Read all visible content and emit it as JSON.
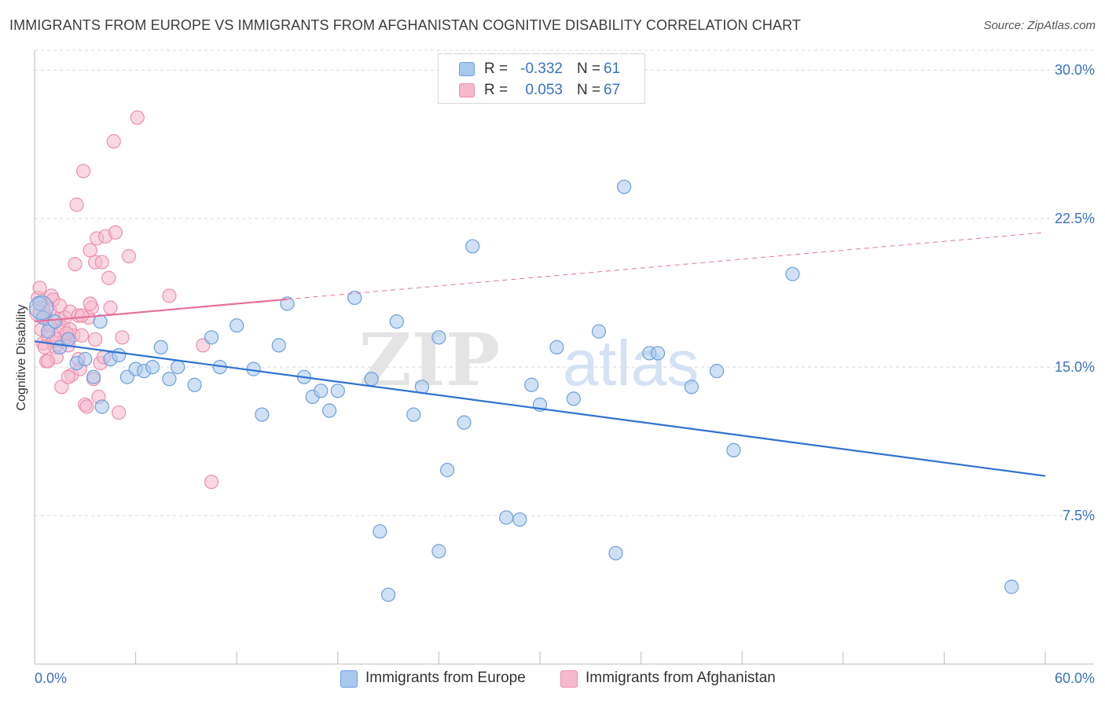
{
  "title": "IMMIGRANTS FROM EUROPE VS IMMIGRANTS FROM AFGHANISTAN COGNITIVE DISABILITY CORRELATION CHART",
  "source": "Source: ZipAtlas.com",
  "watermark": {
    "bold": "ZIP",
    "light": "atlas"
  },
  "colors": {
    "europe_fill": "#a9c8ee",
    "europe_stroke": "#6e9fdc",
    "europe_line": "#2f72d2",
    "afghan_fill": "#f6b8cc",
    "afghan_stroke": "#ec8fae",
    "afghan_line": "#e8709a",
    "axis_text": "#3a72c4",
    "grid": "#d9d9d9"
  },
  "stats": [
    {
      "r_label": "R =",
      "r": "-0.332",
      "n_label": "N =",
      "n": "61"
    },
    {
      "r_label": "R =",
      "r": "0.053",
      "n_label": "N =",
      "n": "67"
    }
  ],
  "chart_data": {
    "type": "scatter",
    "title": "IMMIGRANTS FROM EUROPE VS IMMIGRANTS FROM AFGHANISTAN COGNITIVE DISABILITY CORRELATION CHART",
    "xlabel": "",
    "ylabel": "Cognitive Disability",
    "xlim": [
      0,
      60
    ],
    "ylim": [
      0,
      31
    ],
    "x_tick_labels": [
      "0.0%",
      "60.0%"
    ],
    "y_ticks": [
      7.5,
      15.0,
      22.5,
      30.0
    ],
    "y_tick_labels": [
      "7.5%",
      "15.0%",
      "22.5%",
      "30.0%"
    ],
    "grid": true,
    "legend_position": "bottom-center",
    "series": [
      {
        "name": "Immigrants from Europe",
        "points": [
          [
            0.3,
            18.2
          ],
          [
            0.5,
            17.5
          ],
          [
            0.8,
            16.8
          ],
          [
            1.2,
            17.3
          ],
          [
            1.5,
            16.0
          ],
          [
            2.0,
            16.4
          ],
          [
            2.5,
            15.2
          ],
          [
            3.0,
            15.4
          ],
          [
            3.5,
            14.5
          ],
          [
            3.9,
            17.3
          ],
          [
            4.5,
            15.4
          ],
          [
            5.0,
            15.6
          ],
          [
            5.5,
            14.5
          ],
          [
            6.0,
            14.9
          ],
          [
            6.5,
            14.8
          ],
          [
            7.0,
            15.0
          ],
          [
            7.5,
            16.0
          ],
          [
            8.0,
            14.4
          ],
          [
            8.5,
            15.0
          ],
          [
            9.5,
            14.1
          ],
          [
            10.5,
            16.5
          ],
          [
            11.0,
            15.0
          ],
          [
            12.0,
            17.1
          ],
          [
            13.0,
            14.9
          ],
          [
            13.5,
            12.6
          ],
          [
            14.5,
            16.1
          ],
          [
            15.0,
            18.2
          ],
          [
            16.0,
            14.5
          ],
          [
            16.5,
            13.5
          ],
          [
            17.0,
            13.8
          ],
          [
            17.5,
            12.8
          ],
          [
            18.0,
            13.8
          ],
          [
            19.0,
            18.5
          ],
          [
            20.0,
            14.4
          ],
          [
            20.5,
            6.7
          ],
          [
            21.0,
            3.5
          ],
          [
            21.5,
            17.3
          ],
          [
            22.5,
            12.6
          ],
          [
            23.0,
            14.0
          ],
          [
            24.0,
            16.5
          ],
          [
            24.0,
            5.7
          ],
          [
            24.5,
            9.8
          ],
          [
            25.5,
            12.2
          ],
          [
            26.0,
            21.1
          ],
          [
            28.0,
            7.4
          ],
          [
            28.8,
            7.3
          ],
          [
            29.5,
            14.1
          ],
          [
            30.0,
            13.1
          ],
          [
            31.0,
            16.0
          ],
          [
            32.0,
            13.4
          ],
          [
            33.5,
            16.8
          ],
          [
            34.5,
            5.6
          ],
          [
            35.0,
            24.1
          ],
          [
            36.5,
            15.7
          ],
          [
            37.0,
            15.7
          ],
          [
            39.0,
            14.0
          ],
          [
            40.5,
            14.8
          ],
          [
            41.5,
            10.8
          ],
          [
            45.0,
            19.7
          ],
          [
            58.0,
            3.9
          ],
          [
            4.0,
            13.0
          ]
        ],
        "trend": {
          "x": [
            0,
            60
          ],
          "y": [
            16.3,
            9.5
          ]
        }
      },
      {
        "name": "Immigrants from Afghanistan",
        "points": [
          [
            0.2,
            18.5
          ],
          [
            0.3,
            17.8
          ],
          [
            0.4,
            16.9
          ],
          [
            0.5,
            16.2
          ],
          [
            0.6,
            17.6
          ],
          [
            0.7,
            15.3
          ],
          [
            0.8,
            16.6
          ],
          [
            0.9,
            17.9
          ],
          [
            1.0,
            18.6
          ],
          [
            1.1,
            16.3
          ],
          [
            1.2,
            16.0
          ],
          [
            1.3,
            15.5
          ],
          [
            1.4,
            17.4
          ],
          [
            1.5,
            16.8
          ],
          [
            1.6,
            14.0
          ],
          [
            1.7,
            16.3
          ],
          [
            1.8,
            17.5
          ],
          [
            1.9,
            16.5
          ],
          [
            2.0,
            16.1
          ],
          [
            2.1,
            17.8
          ],
          [
            2.2,
            14.6
          ],
          [
            2.3,
            16.6
          ],
          [
            2.4,
            20.2
          ],
          [
            2.5,
            23.2
          ],
          [
            2.6,
            17.6
          ],
          [
            2.7,
            14.9
          ],
          [
            2.8,
            16.6
          ],
          [
            2.9,
            24.9
          ],
          [
            3.0,
            13.1
          ],
          [
            3.1,
            13.0
          ],
          [
            3.2,
            17.5
          ],
          [
            3.3,
            20.9
          ],
          [
            3.4,
            18.0
          ],
          [
            3.5,
            14.4
          ],
          [
            3.6,
            20.3
          ],
          [
            3.7,
            21.5
          ],
          [
            3.8,
            13.5
          ],
          [
            3.9,
            15.2
          ],
          [
            4.0,
            20.3
          ],
          [
            4.1,
            15.5
          ],
          [
            4.2,
            21.6
          ],
          [
            4.4,
            19.5
          ],
          [
            4.5,
            18.0
          ],
          [
            4.7,
            26.4
          ],
          [
            4.8,
            21.8
          ],
          [
            5.0,
            12.7
          ],
          [
            5.2,
            16.5
          ],
          [
            5.6,
            20.6
          ],
          [
            6.1,
            27.6
          ],
          [
            8.0,
            18.6
          ],
          [
            10.0,
            16.1
          ],
          [
            10.5,
            9.2
          ],
          [
            1.1,
            18.4
          ],
          [
            0.6,
            16.0
          ],
          [
            1.5,
            18.1
          ],
          [
            2.0,
            14.5
          ],
          [
            0.8,
            15.3
          ],
          [
            1.3,
            16.4
          ],
          [
            2.6,
            15.4
          ],
          [
            3.3,
            18.2
          ],
          [
            0.3,
            19.0
          ],
          [
            1.7,
            17.0
          ],
          [
            2.1,
            16.9
          ],
          [
            0.9,
            17.1
          ],
          [
            1.9,
            16.7
          ],
          [
            2.8,
            17.6
          ],
          [
            3.6,
            16.4
          ]
        ],
        "trend": {
          "x": [
            0,
            60
          ],
          "y": [
            17.3,
            21.8
          ],
          "solid_until_x": 15
        }
      }
    ]
  }
}
